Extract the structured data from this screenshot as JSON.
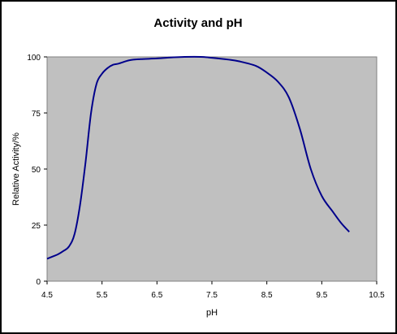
{
  "chart_data": {
    "type": "line",
    "title": "Activity and pH",
    "xlabel": "pH",
    "ylabel": "Relative Activity/%",
    "xlim": [
      4.5,
      10.5
    ],
    "ylim": [
      0,
      100
    ],
    "xticks": [
      "4.5",
      "5.5",
      "6.5",
      "7.5",
      "8.5",
      "9.5",
      "10.5"
    ],
    "yticks": [
      "0",
      "25",
      "50",
      "75",
      "100"
    ],
    "grid": false,
    "legend": "none",
    "plot_background": "#c0c0c0",
    "line_color": "#00008b",
    "series": [
      {
        "x": [
          4.5,
          4.6,
          4.7,
          4.8,
          4.9,
          5.0,
          5.1,
          5.2,
          5.3,
          5.4,
          5.5,
          5.6,
          5.7,
          5.8,
          6.0,
          6.2,
          6.5,
          6.8,
          7.0,
          7.3,
          7.5,
          7.8,
          8.0,
          8.3,
          8.5,
          8.7,
          8.9,
          9.1,
          9.3,
          9.5,
          9.7,
          9.85,
          10.0
        ],
        "y": [
          10,
          11,
          12,
          13.5,
          15.5,
          21,
          34,
          53,
          75,
          88,
          92.5,
          95,
          96.5,
          97,
          98.5,
          99,
          99.3,
          99.8,
          100,
          100,
          99.6,
          98.8,
          98,
          96,
          93,
          89,
          82,
          68,
          50,
          38,
          31,
          26,
          22
        ]
      }
    ]
  }
}
